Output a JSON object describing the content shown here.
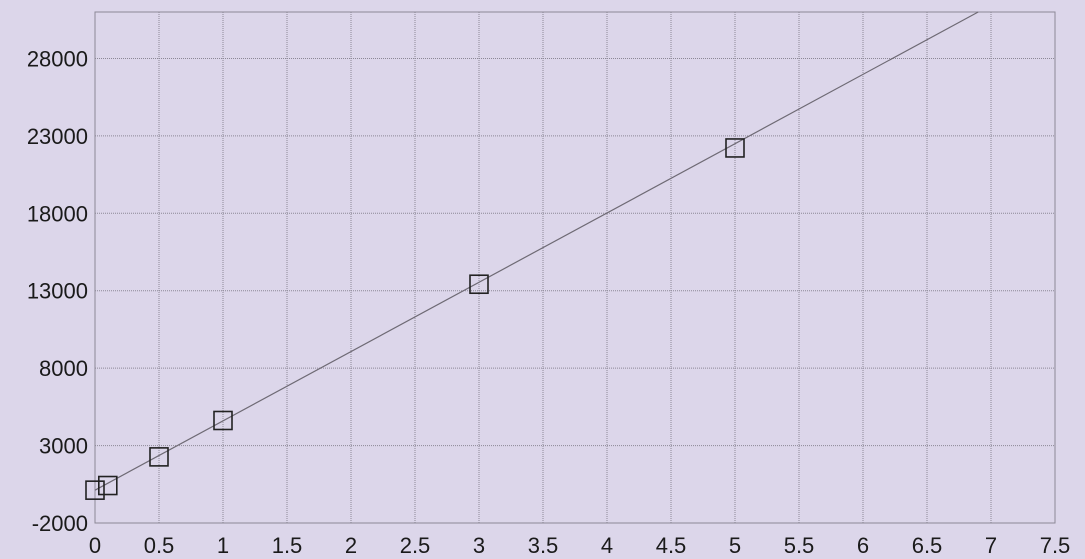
{
  "chart_data": {
    "type": "scatter",
    "title": "",
    "xlabel": "",
    "ylabel": "",
    "xlim": [
      0,
      7.5
    ],
    "ylim": [
      -2000,
      31000
    ],
    "x_ticks": [
      0,
      0.5,
      1,
      1.5,
      2,
      2.5,
      3,
      3.5,
      4,
      4.5,
      5,
      5.5,
      6,
      6.5,
      7,
      7.5
    ],
    "x_tick_labels": [
      "0",
      "0.5",
      "1",
      "1.5",
      "2",
      "2.5",
      "3",
      "3.5",
      "4",
      "4.5",
      "5",
      "5.5",
      "6",
      "6.5",
      "7",
      "7.5"
    ],
    "y_ticks": [
      -2000,
      3000,
      8000,
      13000,
      18000,
      23000,
      28000
    ],
    "y_tick_labels": [
      "-2000",
      "3000",
      "8000",
      "13000",
      "18000",
      "23000",
      "28000"
    ],
    "grid": true,
    "series": [
      {
        "type": "scatter",
        "marker": "square",
        "points": [
          {
            "x": 0.0,
            "y": 120
          },
          {
            "x": 0.1,
            "y": 420
          },
          {
            "x": 0.5,
            "y": 2270
          },
          {
            "x": 1.0,
            "y": 4620
          },
          {
            "x": 3.0,
            "y": 13420
          },
          {
            "x": 5.0,
            "y": 22220
          }
        ]
      },
      {
        "type": "line",
        "points": [
          {
            "x": 0.0,
            "y": 120
          },
          {
            "x": 6.9,
            "y": 31000
          }
        ]
      }
    ],
    "colors": {
      "background": "#dcd6ea",
      "marks": "#222222",
      "line": "#6e6a74",
      "grid": "#8c8896"
    }
  }
}
